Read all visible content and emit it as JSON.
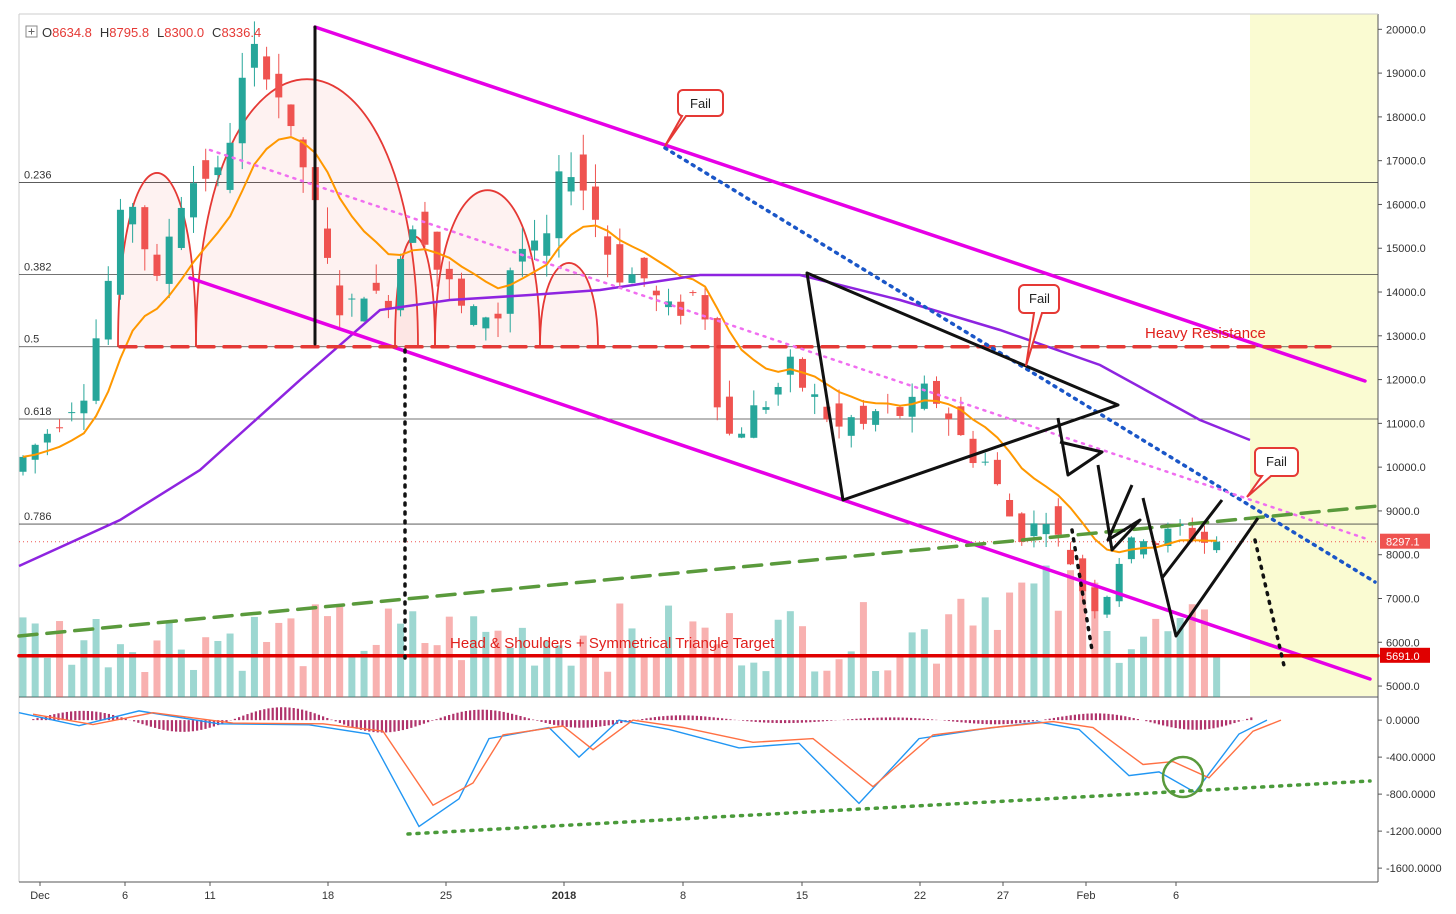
{
  "ohlc": {
    "open_label": "O",
    "open": "8634.8",
    "high_label": "H",
    "high": "8795.8",
    "low_label": "L",
    "low": "8300.0",
    "close_label": "C",
    "close": "8336.4"
  },
  "colors": {
    "up": "#26a69a",
    "down": "#ef5350",
    "ema_short": "#ff9800",
    "ema_long": "#8e24e0",
    "channel": "#e600e6",
    "resistance": "#e53935",
    "target": "#e00000",
    "trend_blue": "#1a56c8",
    "trend_green": "#5a9a3c",
    "macd": "#2196f3",
    "signal": "#ff7043",
    "hist": "#b0336b",
    "forecast_bg": "#fafbd2"
  },
  "annotations": {
    "heavy_resistance": "Heavy Resistance",
    "target_label": "Head & Shoulders + Symmetrical Triangle Target",
    "fail_1": "Fail",
    "fail_2": "Fail",
    "fail_3": "Fail"
  },
  "price_badges": {
    "last": "8297.1",
    "target": "5691.0"
  },
  "chart_data": {
    "type": "candlestick",
    "title": "",
    "x_ticks": [
      "Dec",
      "6",
      "11",
      "18",
      "25",
      "2018",
      "8",
      "15",
      "22",
      "27",
      "Feb",
      "6"
    ],
    "y_ticks": [
      "20000.0",
      "19000.0",
      "18000.0",
      "17000.0",
      "16000.0",
      "15000.0",
      "14000.0",
      "13000.0",
      "12000.0",
      "11000.0",
      "10000.0",
      "9000.0",
      "8000.0",
      "7000.0",
      "6000.0",
      "5000.0"
    ],
    "macd_ticks": [
      "0.0000",
      "-400.0000",
      "-800.0000",
      "-1200.0000",
      "-1600.0000"
    ],
    "fib_levels": [
      {
        "label": "0.236",
        "price": 16500
      },
      {
        "label": "0.382",
        "price": 14400
      },
      {
        "label": "0.5",
        "price": 12750
      },
      {
        "label": "0.618",
        "price": 11100
      },
      {
        "label": "0.786",
        "price": 8700
      }
    ],
    "ylim": [
      4750,
      20350
    ],
    "macd_ylim": [
      -1750,
      250
    ],
    "last_price": 8297.1,
    "target_price": 5691.0,
    "heavy_resistance_price": 12750,
    "key_points": [
      {
        "date": "Nov 30",
        "price": 9900
      },
      {
        "date": "Dec 17",
        "price": 19891
      },
      {
        "date": "Dec 22",
        "price": 12750
      },
      {
        "date": "Jan 6",
        "price": 17200
      },
      {
        "date": "Jan 15",
        "price": 14400
      },
      {
        "date": "Jan 17",
        "price": 9200
      },
      {
        "date": "Jan 28",
        "price": 12200
      },
      {
        "date": "Feb 2",
        "price": 8000
      },
      {
        "date": "Feb 6",
        "price": 6000
      },
      {
        "date": "Feb 10",
        "price": 8800
      },
      {
        "date": "Feb 12",
        "price": 8336
      }
    ]
  }
}
